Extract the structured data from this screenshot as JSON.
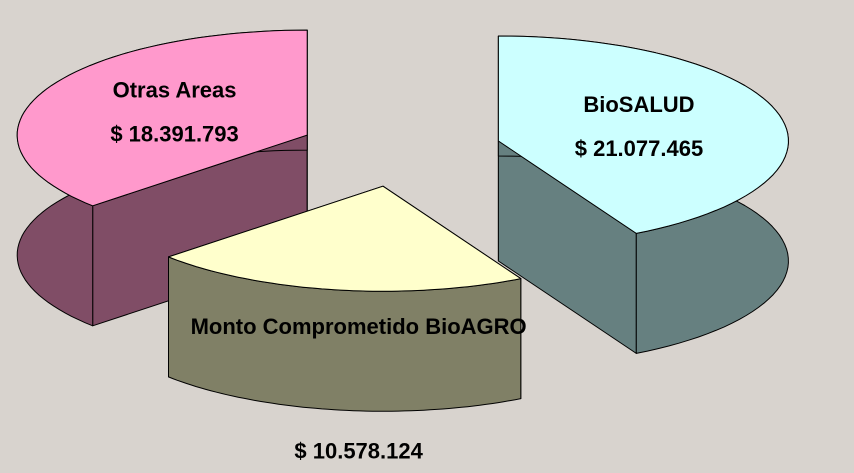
{
  "chart_data": {
    "type": "pie",
    "categories": [
      "BioSALUD",
      "Monto Comprometido BioAGRO",
      "Otras Areas"
    ],
    "values": [
      21077465,
      10578124,
      18391793
    ],
    "value_labels": [
      "$ 21.077.465",
      "$ 10.578.124",
      "$ 18.391.793"
    ],
    "colors": [
      "#ccffff",
      "#ffffcc",
      "#ff99cc"
    ]
  }
}
